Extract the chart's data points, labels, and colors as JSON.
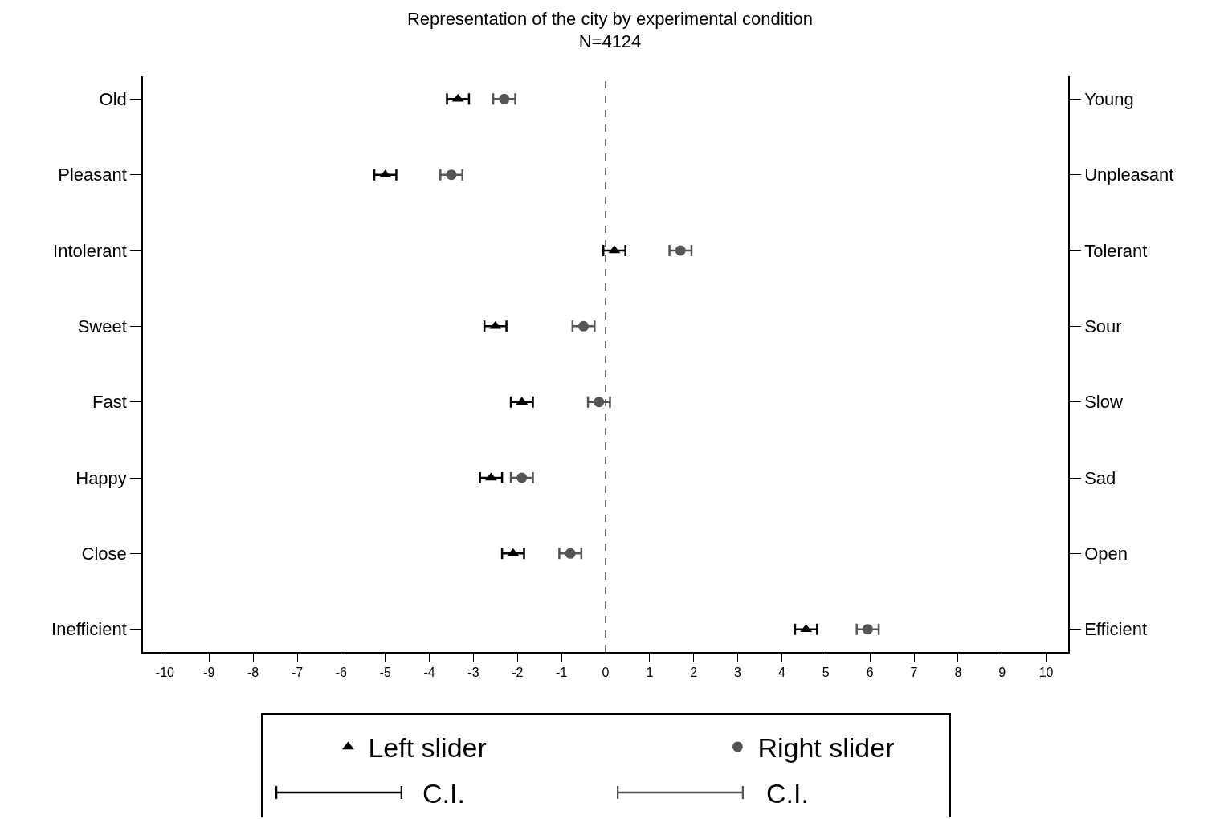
{
  "chart_data": {
    "type": "scatter",
    "orientation": "horizontal",
    "title": "Representation of the city by experimental condition",
    "subtitle": "N=4124",
    "categories": [
      "Old",
      "Pleasant",
      "Intolerant",
      "Sweet",
      "Fast",
      "Happy",
      "Close",
      "Inefficient"
    ],
    "y2_categories": [
      "Young",
      "Unpleasant",
      "Tolerant",
      "Sour",
      "Slow",
      "Sad",
      "Open",
      "Efficient"
    ],
    "series": [
      {
        "name": "Left slider",
        "color": "#000000",
        "marker": "triangle",
        "values": [
          -3.35,
          -5.0,
          0.2,
          -2.5,
          -1.9,
          -2.6,
          -2.1,
          4.55
        ],
        "errors": [
          0.25,
          0.25,
          0.25,
          0.25,
          0.25,
          0.25,
          0.25,
          0.25
        ]
      },
      {
        "name": "Right slider",
        "color": "#555555",
        "marker": "circle",
        "values": [
          -2.3,
          -3.5,
          1.7,
          -0.5,
          -0.15,
          -1.9,
          -0.8,
          5.95
        ],
        "errors": [
          0.25,
          0.25,
          0.25,
          0.25,
          0.25,
          0.25,
          0.25,
          0.25
        ]
      }
    ],
    "xlim": [
      -10.5,
      10.5
    ],
    "xticks": [
      -10,
      -9,
      -8,
      -7,
      -6,
      -5,
      -4,
      -3,
      -2,
      -1,
      0,
      1,
      2,
      3,
      4,
      5,
      6,
      7,
      8,
      9,
      10
    ],
    "ref_lines": [
      {
        "axis": "x",
        "value": 0,
        "line_style": "dashed",
        "color": "#444444"
      }
    ],
    "annotations": [
      "C.I.",
      "C.I."
    ],
    "grid": false,
    "legend": "bottom"
  }
}
